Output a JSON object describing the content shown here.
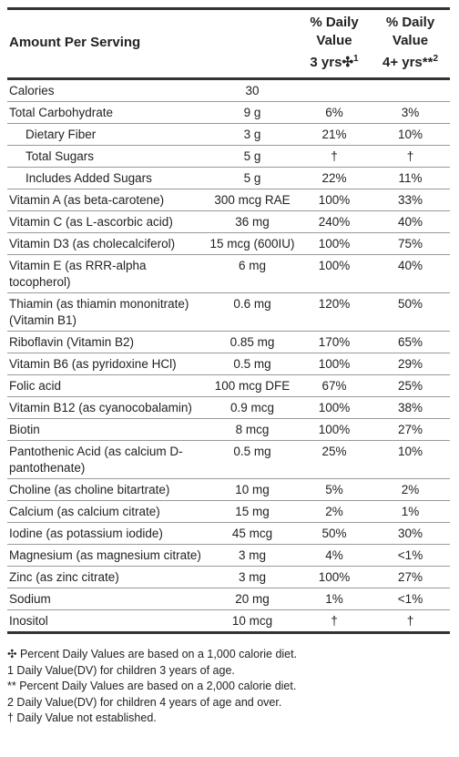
{
  "header": {
    "amount": "Amount Per Serving",
    "dv1": {
      "title": "% Daily Value",
      "basis": "3 yrs✣",
      "note": "1"
    },
    "dv2": {
      "title": "% Daily Value",
      "basis": "4+ yrs**",
      "note": "2"
    }
  },
  "table": {
    "rows": [
      {
        "name": "Calories",
        "amount": "30",
        "dv1": "",
        "dv2": ""
      },
      {
        "name": "Total Carbohydrate",
        "amount": "9 g",
        "dv1": "6%",
        "dv2": "3%"
      },
      {
        "name": "Dietary Fiber",
        "amount": "3 g",
        "dv1": "21%",
        "dv2": "10%",
        "indent": true
      },
      {
        "name": "Total Sugars",
        "amount": "5 g",
        "dv1": "†",
        "dv2": "†",
        "indent": true
      },
      {
        "name": "Includes Added Sugars",
        "amount": "5 g",
        "dv1": "22%",
        "dv2": "11%",
        "indent": true
      },
      {
        "name": "Vitamin A (as beta-carotene)",
        "amount": "300 mcg RAE",
        "dv1": "100%",
        "dv2": "33%"
      },
      {
        "name": "Vitamin C (as L-ascorbic acid)",
        "amount": "36 mg",
        "dv1": "240%",
        "dv2": "40%"
      },
      {
        "name": "Vitamin D3 (as cholecalciferol)",
        "amount": "15 mcg (600IU)",
        "dv1": "100%",
        "dv2": "75%"
      },
      {
        "name": "Vitamin E (as RRR-alpha tocopherol)",
        "amount": "6 mg",
        "dv1": "100%",
        "dv2": "40%"
      },
      {
        "name": "Thiamin (as thiamin mononitrate) (Vitamin B1)",
        "amount": "0.6 mg",
        "dv1": "120%",
        "dv2": "50%"
      },
      {
        "name": "Riboflavin (Vitamin B2)",
        "amount": "0.85 mg",
        "dv1": "170%",
        "dv2": "65%"
      },
      {
        "name": "Vitamin B6 (as pyridoxine HCl)",
        "amount": "0.5 mg",
        "dv1": "100%",
        "dv2": "29%"
      },
      {
        "name": "Folic acid",
        "amount": "100 mcg DFE",
        "dv1": "67%",
        "dv2": "25%"
      },
      {
        "name": "Vitamin B12 (as cyanocobalamin)",
        "amount": "0.9 mcg",
        "dv1": "100%",
        "dv2": "38%"
      },
      {
        "name": "Biotin",
        "amount": "8 mcg",
        "dv1": "100%",
        "dv2": "27%"
      },
      {
        "name": "Pantothenic Acid (as calcium D-pantothenate)",
        "amount": "0.5 mg",
        "dv1": "25%",
        "dv2": "10%"
      },
      {
        "name": "Choline (as choline bitartrate)",
        "amount": "10 mg",
        "dv1": "5%",
        "dv2": "2%"
      },
      {
        "name": "Calcium (as calcium citrate)",
        "amount": "15 mg",
        "dv1": "2%",
        "dv2": "1%"
      },
      {
        "name": "Iodine (as potassium iodide)",
        "amount": "45 mcg",
        "dv1": "50%",
        "dv2": "30%"
      },
      {
        "name": "Magnesium (as magnesium citrate)",
        "amount": "3 mg",
        "dv1": "4%",
        "dv2": "<1%"
      },
      {
        "name": "Zinc (as zinc citrate)",
        "amount": "3 mg",
        "dv1": "100%",
        "dv2": "27%"
      },
      {
        "name": "Sodium",
        "amount": "20 mg",
        "dv1": "1%",
        "dv2": "<1%"
      },
      {
        "name": "Inositol",
        "amount": "10 mcg",
        "dv1": "†",
        "dv2": "†"
      }
    ]
  },
  "footnotes": [
    "✣ Percent Daily Values are based on a 1,000 calorie diet.",
    "1 Daily Value(DV) for children 3 years of age.",
    "** Percent Daily Values are based on a 2,000 calorie diet.",
    "2 Daily Value(DV) for children 4 years of age and over.",
    "† Daily Value not established."
  ]
}
